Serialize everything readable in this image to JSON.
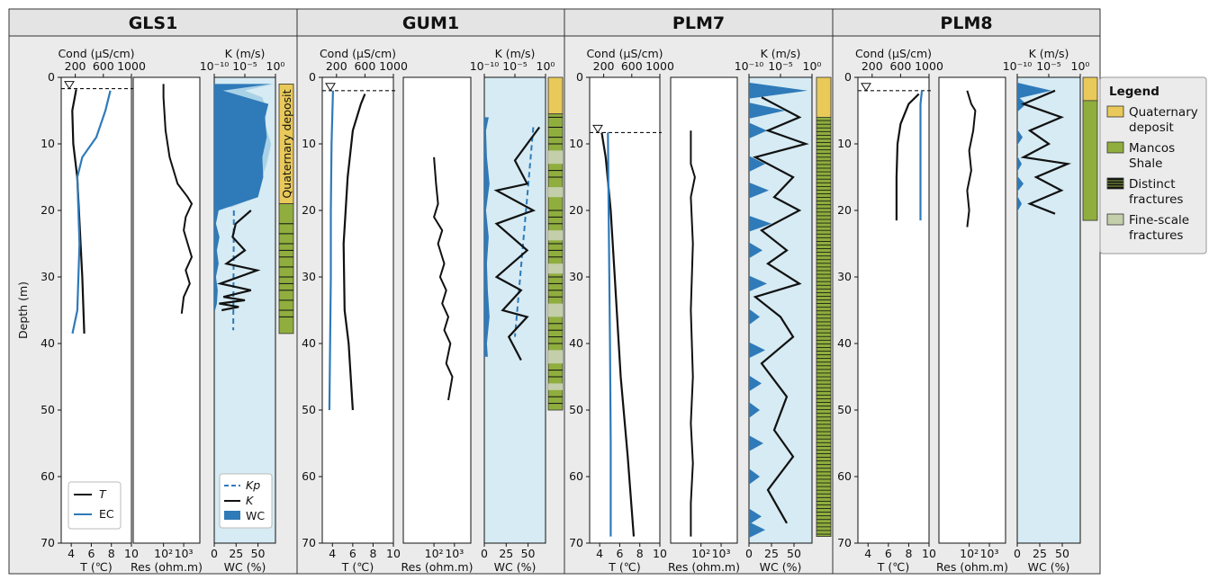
{
  "chart_data": [
    {
      "type": "line",
      "title": "GLS1",
      "total_depth_m": 38.5,
      "water_table_m": 1.7,
      "tracks": {
        "temp_ec": {
          "xlabel_bottom": "T (℃)",
          "xlabel_top": "Cond (μS/cm)",
          "bottom_ticks": [
            "4",
            "6",
            "8",
            "10"
          ],
          "top_ticks": [
            "200",
            "600",
            "1000"
          ],
          "xlim_T": [
            3,
            10
          ],
          "xlim_EC": [
            0,
            1000
          ],
          "series": [
            {
              "name": "T",
              "color": "#111111",
              "x": [
                4.5,
                4.1,
                4.2,
                4.6,
                5.1,
                5.3
              ],
              "y": [
                1.8,
                5,
                10,
                15,
                30,
                38.5
              ]
            },
            {
              "name": "EC",
              "color": "#2f7ab9",
              "x": [
                700,
                630,
                500,
                300,
                230,
                260,
                230,
                160
              ],
              "y": [
                2,
                5,
                9,
                12,
                15,
                25,
                35,
                38.5
              ]
            }
          ],
          "legend": [
            "T",
            "EC"
          ]
        },
        "res": {
          "xlabel": "Res (ohm.m)",
          "ticks": [
            "10²",
            "10³"
          ],
          "xlim_log": [
            0.5,
            3.8
          ],
          "series": [
            {
              "name": "Res",
              "x": [
                2.0,
                2.0,
                2.1,
                2.3,
                2.7,
                3.2,
                3.4,
                3.1,
                3.0,
                3.2,
                3.4,
                3.1,
                3.3,
                3.0,
                2.9
              ],
              "y": [
                1,
                3,
                8,
                12,
                16,
                18,
                19,
                21,
                23,
                25,
                27,
                29,
                31,
                33,
                35.5
              ]
            }
          ]
        },
        "wc_k": {
          "xlabel_bottom": "WC (%)",
          "xlabel_top": "K (m/s)",
          "bottom_ticks": [
            "0",
            "25",
            "50"
          ],
          "top_ticks": [
            "10⁻¹⁰",
            "10⁻⁵",
            "10⁰"
          ],
          "xlim_wc": [
            0,
            70
          ],
          "xlim_logK": [
            -10,
            0
          ],
          "wc": {
            "y": [
              1,
              2,
              4,
              6,
              9,
              12,
              15,
              18,
              20,
              22,
              24,
              26,
              28,
              30,
              32,
              34,
              35
            ],
            "x": [
              65,
              10,
              62,
              58,
              60,
              55,
              56,
              50,
              5,
              2,
              6,
              3,
              5,
              2,
              4,
              3,
              1
            ]
          },
          "wc_light": {
            "y": [
              1,
              2,
              3,
              5,
              7,
              10,
              13,
              16,
              18,
              19.5
            ],
            "x": [
              68,
              35,
              55,
              60,
              58,
              65,
              60,
              52,
              48,
              20
            ]
          },
          "Kp": {
            "x": [
              -6.8,
              -6.9
            ],
            "y": [
              20,
              38
            ]
          },
          "K": {
            "x": [
              -4,
              -6.5,
              -7,
              -5,
              -8,
              -3,
              -9,
              -4,
              -8.5,
              -5,
              -9.2,
              -6,
              -8.8
            ],
            "y": [
              20,
              22,
              24,
              26,
              28,
              29,
              31,
              32,
              33,
              33.5,
              34,
              34.5,
              35
            ]
          },
          "legend": [
            "Kp",
            "K",
            "WC"
          ]
        }
      },
      "lithology": [
        {
          "top": 1,
          "bottom": 19,
          "unit": "Quaternary deposit"
        },
        {
          "top": 19,
          "bottom": 38.5,
          "unit": "Mancos Shale"
        }
      ],
      "fractures": [
        22,
        23.5,
        25,
        26,
        27,
        28.5,
        30,
        31,
        32,
        33.5,
        35,
        36
      ],
      "lith_label": "Quaternary deposit"
    },
    {
      "type": "line",
      "title": "GUM1",
      "total_depth_m": 50,
      "water_table_m": 2,
      "tracks": {
        "temp_ec": {
          "series": [
            {
              "name": "T",
              "x": [
                7.2,
                6.8,
                6.0,
                5.5,
                5.1,
                5.2,
                5.6,
                6.0
              ],
              "y": [
                2.5,
                4,
                8,
                15,
                25,
                35,
                40,
                50
              ]
            },
            {
              "name": "EC",
              "x": [
                150,
                130,
                120,
                120,
                110,
                100
              ],
              "y": [
                2,
                10,
                20,
                30,
                40,
                50
              ]
            }
          ]
        },
        "res": {
          "series": [
            {
              "x": [
                2.0,
                2.1,
                2.2,
                2.0,
                2.4,
                2.2,
                2.5,
                2.3,
                2.6,
                2.4,
                2.7,
                2.5,
                2.8,
                2.6,
                2.9,
                2.7
              ],
              "y": [
                12,
                16,
                19,
                21,
                23,
                25,
                28,
                30,
                32,
                34,
                36,
                38,
                40,
                43,
                45,
                48.5
              ]
            }
          ]
        },
        "wc_k": {
          "wc": {
            "y": [
              6,
              8,
              12,
              16,
              20,
              24,
              28,
              32,
              36,
              40,
              42
            ],
            "x": [
              5,
              2,
              3,
              6,
              2,
              5,
              3,
              4,
              6,
              3,
              4
            ]
          },
          "Kp": {
            "x": [
              -2,
              -5
            ],
            "y": [
              7.5,
              39
            ]
          },
          "K": {
            "x": [
              -1,
              -3,
              -5,
              -3,
              -8,
              -2,
              -8,
              -3,
              -8,
              -4,
              -7,
              -3,
              -6,
              -4
            ],
            "y": [
              7.5,
              10,
              12.5,
              16,
              17,
              20,
              22,
              26,
              30,
              32,
              35,
              36,
              39,
              42.5
            ]
          }
        }
      },
      "lithology": [
        {
          "top": 0,
          "bottom": 5.5,
          "unit": "Quaternary deposit"
        },
        {
          "top": 5.5,
          "bottom": 50,
          "unit": "Mancos Shale"
        }
      ],
      "fine_fractures": [
        [
          11,
          13
        ],
        [
          16.5,
          18
        ],
        [
          23,
          24.5
        ],
        [
          28,
          29.5
        ],
        [
          34,
          36
        ],
        [
          41,
          43
        ],
        [
          46,
          47
        ]
      ],
      "fractures": [
        6,
        7.5,
        9,
        10,
        14,
        15,
        20,
        21,
        22,
        25,
        26,
        27,
        30,
        31,
        32,
        33,
        37,
        38,
        39,
        40,
        44,
        45,
        48,
        49
      ]
    },
    {
      "type": "line",
      "title": "PLM7",
      "total_depth_m": 69,
      "water_table_m": 8.3,
      "tracks": {
        "temp_ec": {
          "series": [
            {
              "name": "T",
              "x": [
                4.2,
                4.6,
                5.1,
                5.5,
                6.1,
                6.8,
                7.4
              ],
              "y": [
                8.3,
                12,
                20,
                30,
                45,
                57,
                69
              ]
            },
            {
              "name": "EC",
              "x": [
                260,
                270,
                290,
                300,
                300
              ],
              "y": [
                8.3,
                20,
                40,
                55,
                69
              ]
            }
          ]
        },
        "res": {
          "series": [
            {
              "x": [
                1.5,
                1.5,
                1.7,
                1.5,
                1.6,
                1.5,
                1.6,
                1.5,
                1.6,
                1.5,
                1.5
              ],
              "y": [
                8,
                13,
                15,
                18,
                25,
                35,
                45,
                52,
                58,
                64,
                69
              ]
            }
          ]
        },
        "wc_k": {
          "wc_peaks": [
            {
              "y": 2,
              "w": 65
            },
            {
              "y": 5,
              "w": 40
            },
            {
              "y": 8,
              "w": 20
            },
            {
              "y": 13,
              "w": 18
            },
            {
              "y": 17,
              "w": 22
            },
            {
              "y": 22,
              "w": 25
            },
            {
              "y": 26,
              "w": 15
            },
            {
              "y": 31,
              "w": 20
            },
            {
              "y": 36,
              "w": 12
            },
            {
              "y": 41,
              "w": 18
            },
            {
              "y": 46,
              "w": 14
            },
            {
              "y": 50,
              "w": 12
            },
            {
              "y": 55,
              "w": 16
            },
            {
              "y": 60,
              "w": 12
            },
            {
              "y": 66,
              "w": 14
            },
            {
              "y": 68,
              "w": 18
            }
          ],
          "K": {
            "x": [
              -8,
              -2,
              -7,
              -1,
              -9,
              -3,
              -6,
              -2,
              -8,
              -4,
              -7,
              -2,
              -9,
              -5,
              -3,
              -8,
              -4,
              -6,
              -3,
              -7,
              -4
            ],
            "y": [
              3,
              6,
              8,
              10,
              12,
              15,
              18,
              20,
              23,
              26,
              28,
              31,
              33,
              36,
              39,
              43,
              48,
              53,
              57,
              62,
              67
            ]
          }
        }
      },
      "lithology": [
        {
          "top": 0,
          "bottom": 6,
          "unit": "Quaternary deposit"
        },
        {
          "top": 6,
          "bottom": 69,
          "unit": "Mancos Shale"
        }
      ],
      "fractures_density": "dense"
    },
    {
      "type": "line",
      "title": "PLM8",
      "total_depth_m": 21.5,
      "water_table_m": 2,
      "tracks": {
        "temp_ec": {
          "series": [
            {
              "name": "T",
              "x": [
                9.0,
                8.0,
                7.2,
                6.9,
                6.8,
                6.8
              ],
              "y": [
                2.5,
                4,
                7,
                10,
                15,
                21.5
              ]
            },
            {
              "name": "EC",
              "x": [
                900,
                880,
                880,
                880
              ],
              "y": [
                2,
                4,
                12,
                21.5
              ]
            }
          ]
        },
        "res": {
          "series": [
            {
              "x": [
                1.9,
                2.1,
                2.3,
                2.2,
                2.0,
                2.1,
                1.9,
                2.0,
                1.9
              ],
              "y": [
                2,
                4,
                5,
                8,
                11,
                14,
                17,
                20,
                22.5
              ]
            }
          ]
        },
        "wc_k": {
          "wc_peaks": [
            {
              "y": 2,
              "w": 38
            },
            {
              "y": 4,
              "w": 10
            },
            {
              "y": 9,
              "w": 6
            },
            {
              "y": 13,
              "w": 5
            },
            {
              "y": 16,
              "w": 7
            },
            {
              "y": 19,
              "w": 5
            }
          ],
          "K": {
            "x": [
              -4,
              -9,
              -3,
              -8,
              -5,
              -9,
              -2,
              -7,
              -3,
              -8,
              -4
            ],
            "y": [
              2,
              4,
              6,
              8,
              10,
              12,
              13,
              15,
              17,
              19,
              20.5
            ]
          }
        }
      },
      "lithology": [
        {
          "top": 0,
          "bottom": 3.5,
          "unit": "Quaternary deposit"
        },
        {
          "top": 3.5,
          "bottom": 21.5,
          "unit": "Mancos Shale"
        }
      ],
      "fractures": []
    }
  ],
  "shared": {
    "ylabel": "Depth (m)",
    "y_ticks": [
      "0",
      "10",
      "20",
      "30",
      "40",
      "50",
      "60",
      "70"
    ],
    "ylim": [
      0,
      70
    ]
  },
  "legend": {
    "title": "Legend",
    "items": [
      {
        "label": "Quaternary deposit",
        "color": "#e8c95a"
      },
      {
        "label": "Mancos Shale",
        "color": "#8fae3e"
      },
      {
        "label": "Distinct fractures",
        "color": "#111111"
      },
      {
        "label": "Fine-scale fractures",
        "color": "#c3ceaa"
      }
    ]
  },
  "colors": {
    "panel_bg": "#ebebeb",
    "title_bg": "#e4e4e4",
    "track_bg": "#d6ebf3",
    "blue": "#2f7ab9",
    "light_blue": "#a9d2e6"
  }
}
